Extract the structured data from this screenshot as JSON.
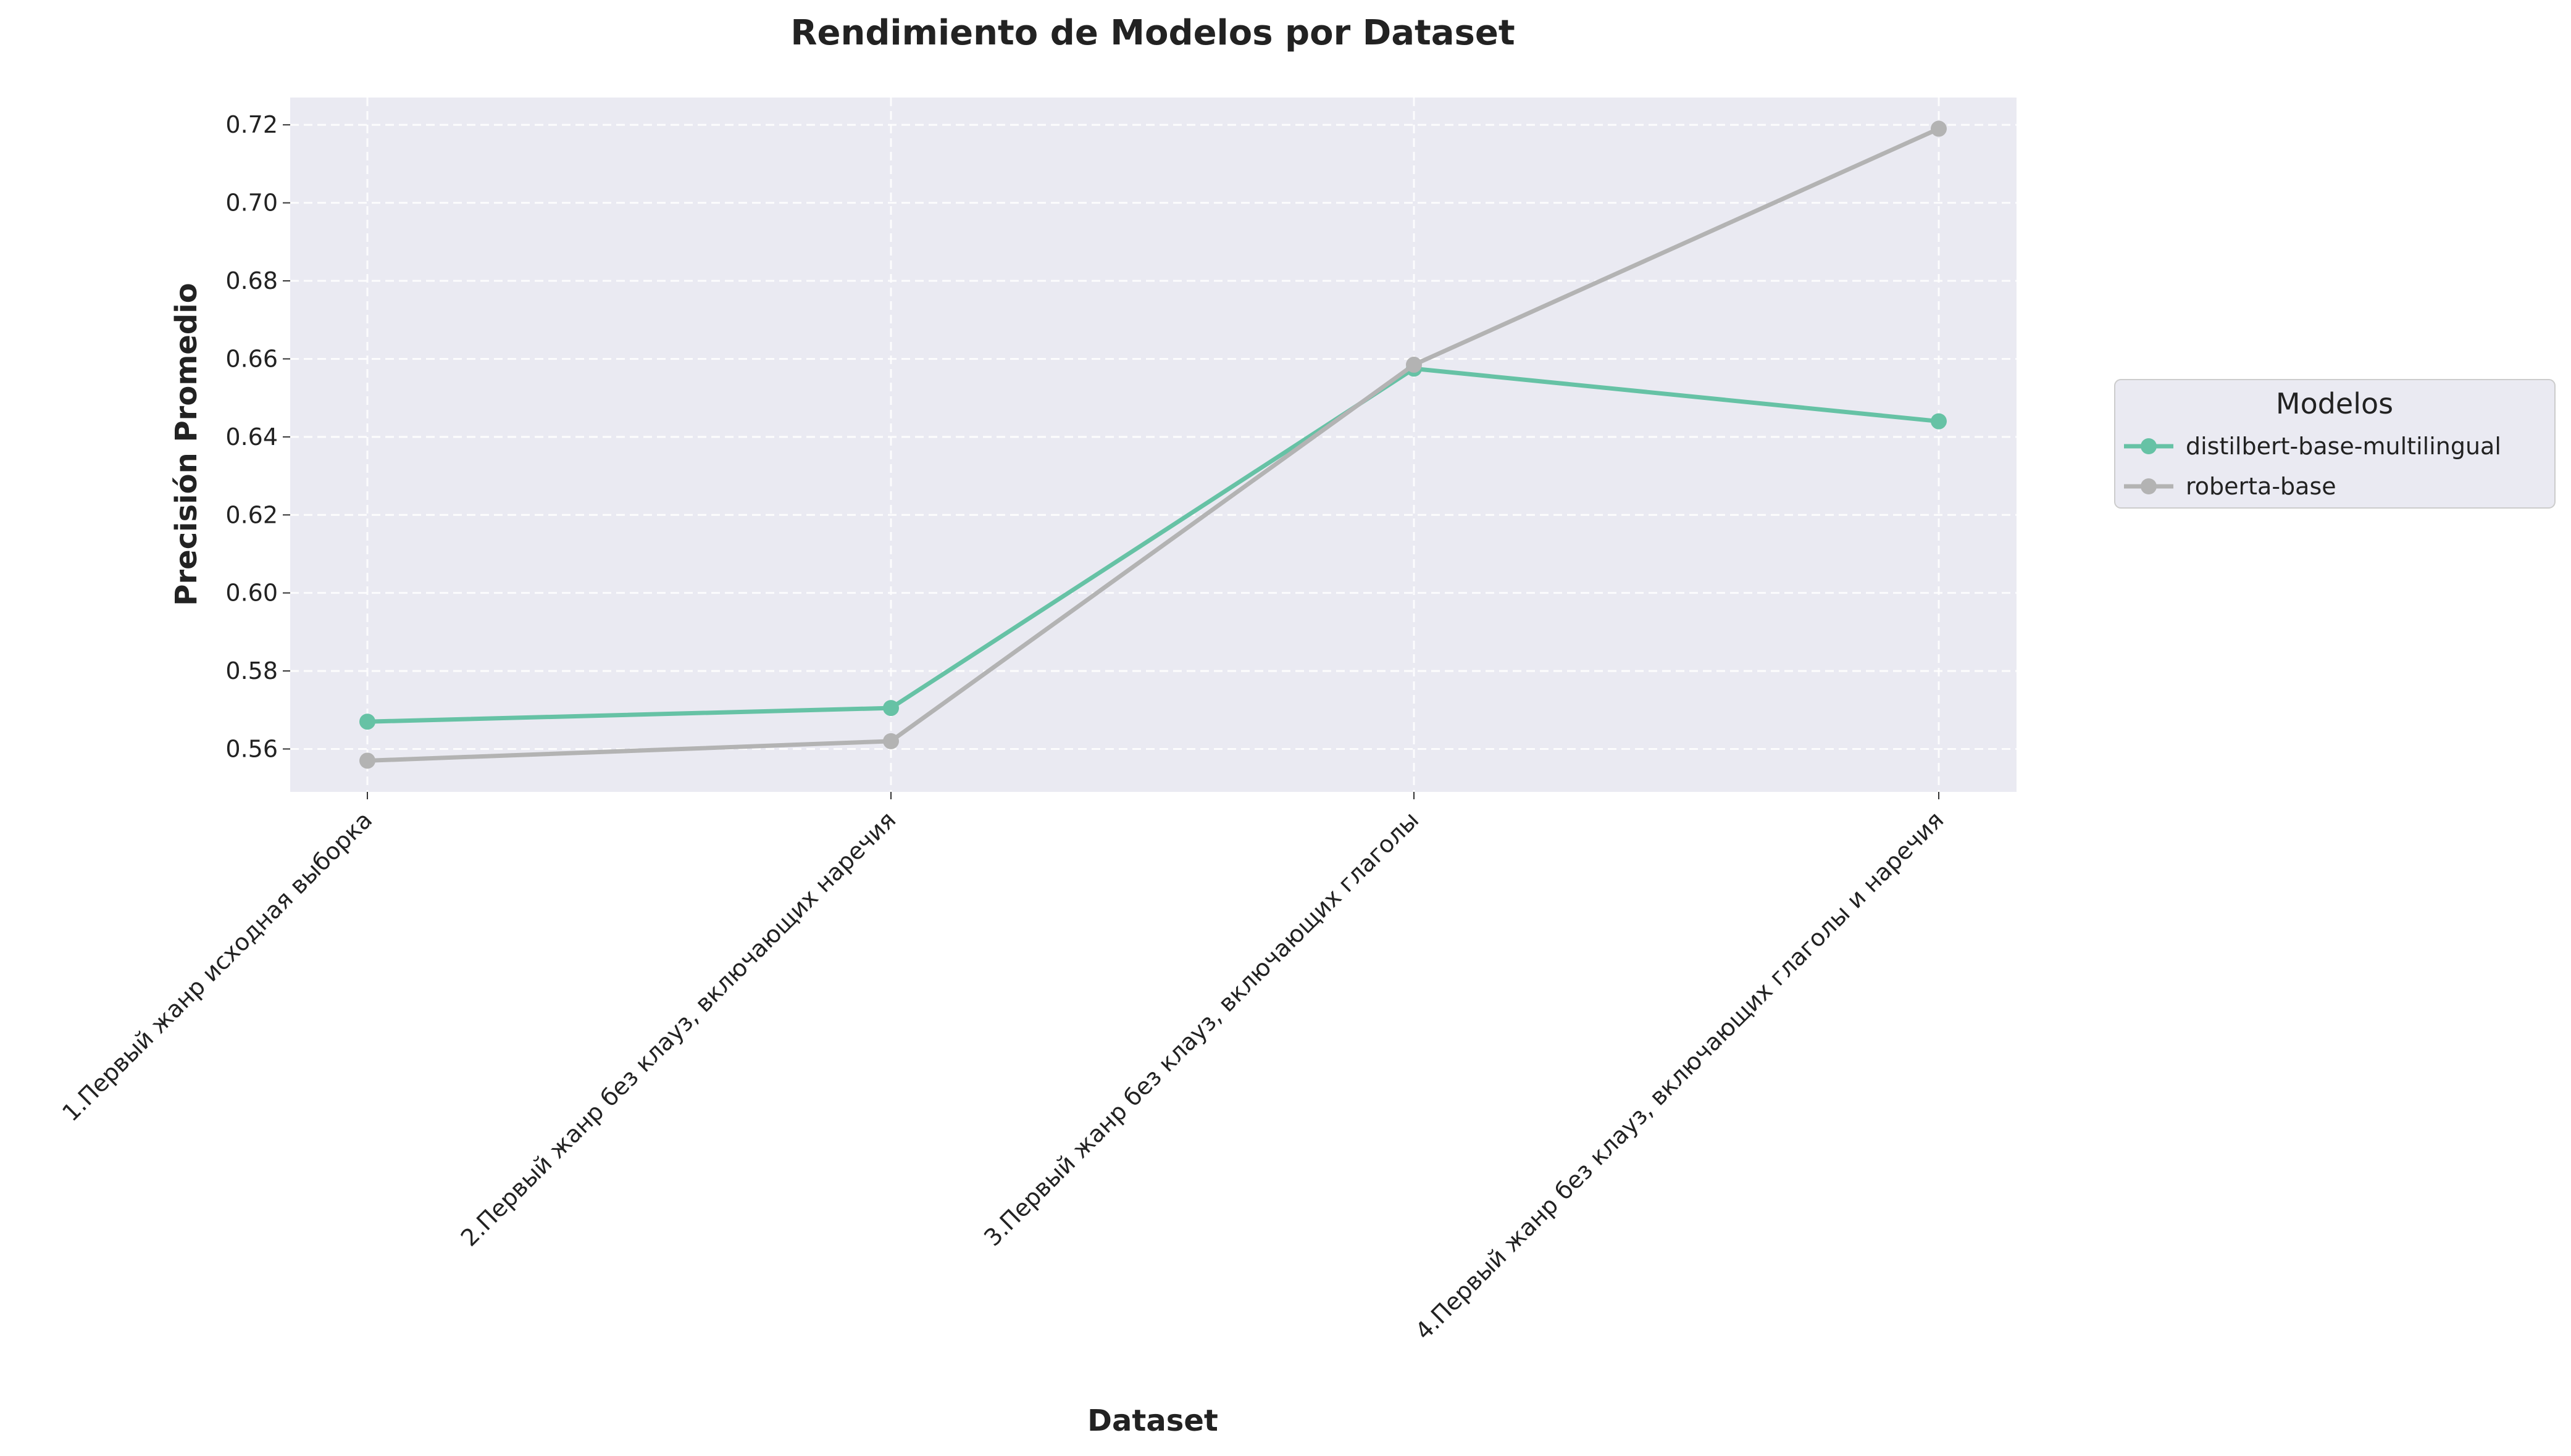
{
  "chart_data": {
    "type": "line",
    "title": "Rendimiento de Modelos por Dataset",
    "xlabel": "Dataset",
    "ylabel": "Precisión Promedio",
    "categories": [
      "1.Первый жанр исходная выборка",
      "2.Первый жанр без клауз, включающих наречия",
      "3.Первый жанр без клауз, включающих глаголы",
      "4.Первый жанр без клауз, включающих глаголы и наречия"
    ],
    "series": [
      {
        "name": "distilbert-base-multilingual",
        "values": [
          0.567,
          0.5705,
          0.6575,
          0.644
        ],
        "color": "#66c2a5"
      },
      {
        "name": "roberta-base",
        "values": [
          0.557,
          0.562,
          0.6585,
          0.719
        ],
        "color": "#b3b3b3"
      }
    ],
    "ylim": [
      0.549,
      0.727
    ],
    "yticks": [
      "0.56",
      "0.58",
      "0.60",
      "0.62",
      "0.64",
      "0.66",
      "0.68",
      "0.70",
      "0.72"
    ],
    "grid": true,
    "legend": {
      "title": "Modelos",
      "placement": "right"
    },
    "plot_background": "#eaeaf2"
  }
}
